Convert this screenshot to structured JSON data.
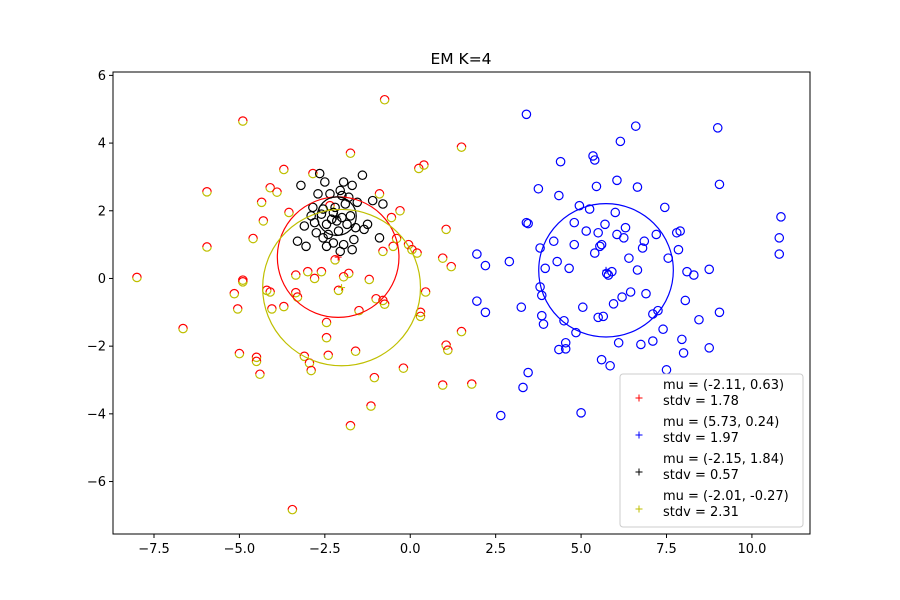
{
  "chart_data": {
    "type": "scatter",
    "title": "EM K=4",
    "xlabel": "",
    "ylabel": "",
    "xlim": [
      -8.7,
      11.7
    ],
    "ylim": [
      -7.55,
      6.1
    ],
    "xticks": [
      -7.5,
      -5.0,
      -2.5,
      0.0,
      2.5,
      5.0,
      7.5,
      10.0
    ],
    "xtick_labels": [
      "−7.5",
      "−5.0",
      "−2.5",
      "0.0",
      "2.5",
      "5.0",
      "7.5",
      "10.0"
    ],
    "yticks": [
      -6,
      -4,
      -2,
      0,
      2,
      4,
      6
    ],
    "ytick_labels": [
      "−6",
      "−4",
      "−2",
      "0",
      "2",
      "4",
      "6"
    ],
    "grid": false,
    "legend_position": "lower-right",
    "clusters": [
      {
        "label_line1": "mu = (-2.11, 0.63)",
        "label_line2": " stdv = 1.78",
        "mu": [
          -2.11,
          0.63
        ],
        "stdv": 1.78,
        "color": "#ff0000"
      },
      {
        "label_line1": "mu = (5.73, 0.24)",
        "label_line2": " stdv = 1.97",
        "mu": [
          5.73,
          0.24
        ],
        "stdv": 1.97,
        "color": "#0000ff"
      },
      {
        "label_line1": "mu = (-2.15, 1.84)",
        "label_line2": " stdv = 0.57",
        "mu": [
          -2.15,
          1.84
        ],
        "stdv": 0.57,
        "color": "#000000"
      },
      {
        "label_line1": "mu = (-2.01, -0.27)",
        "label_line2": " stdv = 2.31",
        "mu": [
          -2.01,
          -0.27
        ],
        "stdv": 2.31,
        "color": "#bfbf00"
      }
    ],
    "points_red_yellow": [
      [
        -8.0,
        0.03
      ],
      [
        -6.65,
        -1.48
      ],
      [
        -5.95,
        2.56
      ],
      [
        -5.95,
        0.93
      ],
      [
        -4.9,
        4.65
      ],
      [
        -5.15,
        -0.45
      ],
      [
        -5.05,
        -0.9
      ],
      [
        -5.0,
        -2.22
      ],
      [
        -4.9,
        -0.05
      ],
      [
        -4.9,
        -0.1
      ],
      [
        -4.6,
        1.18
      ],
      [
        -4.5,
        -2.33
      ],
      [
        -4.5,
        -2.45
      ],
      [
        -4.4,
        -2.83
      ],
      [
        -4.35,
        2.25
      ],
      [
        -4.3,
        1.7
      ],
      [
        -4.2,
        -0.35
      ],
      [
        -4.1,
        -0.4
      ],
      [
        -4.1,
        2.68
      ],
      [
        -4.05,
        -0.9
      ],
      [
        -3.9,
        2.55
      ],
      [
        -3.7,
        3.22
      ],
      [
        -3.7,
        -0.83
      ],
      [
        -3.55,
        1.95
      ],
      [
        -3.45,
        -6.83
      ],
      [
        -3.35,
        -0.42
      ],
      [
        -3.35,
        0.1
      ],
      [
        -3.3,
        -0.55
      ],
      [
        -3.1,
        -2.3
      ],
      [
        -3.0,
        0.2
      ],
      [
        -2.95,
        -2.5
      ],
      [
        -2.9,
        -2.72
      ],
      [
        -2.85,
        3.1
      ],
      [
        -2.8,
        0.0
      ],
      [
        -2.6,
        0.2
      ],
      [
        -2.45,
        -1.3
      ],
      [
        -2.45,
        -1.75
      ],
      [
        -2.4,
        -2.27
      ],
      [
        -2.35,
        2.15
      ],
      [
        -2.2,
        0.55
      ],
      [
        -2.1,
        -0.35
      ],
      [
        -1.95,
        0.05
      ],
      [
        -1.8,
        0.15
      ],
      [
        -1.75,
        3.7
      ],
      [
        -1.75,
        -4.35
      ],
      [
        -1.6,
        -2.15
      ],
      [
        -1.5,
        -0.95
      ],
      [
        -1.2,
        -0.03
      ],
      [
        -1.15,
        -3.77
      ],
      [
        -1.05,
        -2.93
      ],
      [
        -1.0,
        -0.6
      ],
      [
        -0.9,
        2.5
      ],
      [
        -0.8,
        -0.65
      ],
      [
        -0.8,
        0.8
      ],
      [
        -0.75,
        5.28
      ],
      [
        -0.75,
        -0.76
      ],
      [
        -0.55,
        1.8
      ],
      [
        -0.5,
        0.95
      ],
      [
        -0.4,
        1.18
      ],
      [
        -0.3,
        2.0
      ],
      [
        -0.2,
        -2.65
      ],
      [
        -0.05,
        1.0
      ],
      [
        0.05,
        0.85
      ],
      [
        0.25,
        3.25
      ],
      [
        0.3,
        -1.12
      ],
      [
        0.3,
        -1.0
      ],
      [
        0.45,
        -0.4
      ],
      [
        0.95,
        0.6
      ],
      [
        1.05,
        -1.97
      ],
      [
        1.1,
        -2.12
      ],
      [
        1.2,
        0.35
      ],
      [
        1.5,
        -1.57
      ],
      [
        0.95,
        -3.15
      ],
      [
        1.8,
        -3.12
      ],
      [
        1.05,
        1.45
      ],
      [
        0.2,
        0.75
      ],
      [
        0.4,
        3.35
      ],
      [
        1.5,
        3.88
      ]
    ],
    "points_black": [
      [
        -3.3,
        1.1
      ],
      [
        -3.2,
        2.75
      ],
      [
        -3.1,
        1.55
      ],
      [
        -3.05,
        0.95
      ],
      [
        -2.9,
        1.85
      ],
      [
        -2.85,
        2.1
      ],
      [
        -2.8,
        1.65
      ],
      [
        -2.75,
        1.35
      ],
      [
        -2.7,
        2.5
      ],
      [
        -2.65,
        3.1
      ],
      [
        -2.6,
        1.9
      ],
      [
        -2.55,
        2.05
      ],
      [
        -2.5,
        2.85
      ],
      [
        -2.45,
        0.95
      ],
      [
        -2.45,
        1.6
      ],
      [
        -2.4,
        1.3
      ],
      [
        -2.35,
        2.5
      ],
      [
        -2.3,
        1.75
      ],
      [
        -2.25,
        1.95
      ],
      [
        -2.2,
        2.1
      ],
      [
        -2.15,
        1.7
      ],
      [
        -2.1,
        1.4
      ],
      [
        -2.05,
        2.6
      ],
      [
        -2.0,
        2.45
      ],
      [
        -2.0,
        1.8
      ],
      [
        -1.95,
        2.85
      ],
      [
        -1.95,
        1.0
      ],
      [
        -1.9,
        2.2
      ],
      [
        -1.85,
        1.6
      ],
      [
        -1.8,
        2.4
      ],
      [
        -1.75,
        1.85
      ],
      [
        -1.7,
        2.75
      ],
      [
        -1.7,
        0.85
      ],
      [
        -1.65,
        1.15
      ],
      [
        -1.6,
        1.5
      ],
      [
        -1.55,
        2.25
      ],
      [
        -1.4,
        3.05
      ],
      [
        -1.35,
        1.45
      ],
      [
        -1.25,
        1.6
      ],
      [
        -1.1,
        2.3
      ],
      [
        -0.9,
        1.2
      ],
      [
        -0.8,
        2.2
      ],
      [
        -2.55,
        1.2
      ],
      [
        -2.25,
        1.05
      ],
      [
        -2.05,
        0.8
      ]
    ],
    "points_blue": [
      [
        1.95,
        0.72
      ],
      [
        1.95,
        -0.67
      ],
      [
        2.2,
        0.38
      ],
      [
        2.2,
        -1.0
      ],
      [
        2.65,
        -4.05
      ],
      [
        2.9,
        0.5
      ],
      [
        3.25,
        -0.85
      ],
      [
        3.3,
        -3.22
      ],
      [
        3.4,
        4.85
      ],
      [
        3.4,
        1.65
      ],
      [
        3.45,
        1.62
      ],
      [
        3.45,
        -2.78
      ],
      [
        3.75,
        2.65
      ],
      [
        3.8,
        0.9
      ],
      [
        3.8,
        -0.25
      ],
      [
        3.85,
        -1.1
      ],
      [
        3.85,
        -0.5
      ],
      [
        3.9,
        -1.35
      ],
      [
        3.95,
        0.3
      ],
      [
        4.2,
        1.1
      ],
      [
        4.3,
        0.5
      ],
      [
        4.35,
        -2.1
      ],
      [
        4.35,
        2.45
      ],
      [
        4.4,
        3.45
      ],
      [
        4.5,
        -1.25
      ],
      [
        4.55,
        -1.9
      ],
      [
        4.55,
        -2.08
      ],
      [
        4.65,
        0.3
      ],
      [
        4.8,
        1.0
      ],
      [
        4.8,
        1.65
      ],
      [
        4.85,
        -1.6
      ],
      [
        4.95,
        2.15
      ],
      [
        5.0,
        -3.97
      ],
      [
        5.05,
        -0.85
      ],
      [
        5.15,
        1.4
      ],
      [
        5.25,
        2.05
      ],
      [
        5.35,
        3.62
      ],
      [
        5.4,
        3.5
      ],
      [
        5.4,
        0.75
      ],
      [
        5.45,
        2.72
      ],
      [
        5.5,
        1.35
      ],
      [
        5.5,
        -1.15
      ],
      [
        5.55,
        0.95
      ],
      [
        5.6,
        -2.4
      ],
      [
        5.65,
        -1.12
      ],
      [
        5.7,
        1.6
      ],
      [
        5.75,
        0.15
      ],
      [
        5.8,
        0.1
      ],
      [
        5.85,
        -2.58
      ],
      [
        5.9,
        0.2
      ],
      [
        5.95,
        -0.75
      ],
      [
        6.0,
        1.95
      ],
      [
        6.05,
        2.9
      ],
      [
        6.05,
        1.3
      ],
      [
        6.1,
        -1.9
      ],
      [
        6.15,
        4.05
      ],
      [
        6.2,
        -0.55
      ],
      [
        6.25,
        1.2
      ],
      [
        6.3,
        1.5
      ],
      [
        6.4,
        0.6
      ],
      [
        6.6,
        4.5
      ],
      [
        6.65,
        2.7
      ],
      [
        6.65,
        0.25
      ],
      [
        6.75,
        -1.95
      ],
      [
        6.8,
        0.9
      ],
      [
        6.85,
        1.1
      ],
      [
        6.9,
        -0.45
      ],
      [
        7.1,
        -1.85
      ],
      [
        7.1,
        -1.05
      ],
      [
        7.2,
        1.3
      ],
      [
        7.25,
        -0.95
      ],
      [
        7.4,
        -1.5
      ],
      [
        7.5,
        -2.7
      ],
      [
        7.55,
        0.6
      ],
      [
        7.8,
        1.35
      ],
      [
        7.9,
        1.4
      ],
      [
        7.95,
        -1.8
      ],
      [
        8.0,
        -2.2
      ],
      [
        8.05,
        -0.65
      ],
      [
        8.1,
        0.2
      ],
      [
        8.3,
        0.1
      ],
      [
        8.45,
        -1.22
      ],
      [
        8.75,
        0.27
      ],
      [
        8.75,
        -2.05
      ],
      [
        9.0,
        4.45
      ],
      [
        9.05,
        -1.0
      ],
      [
        9.05,
        2.78
      ],
      [
        10.8,
        1.2
      ],
      [
        10.85,
        1.82
      ],
      [
        10.8,
        0.72
      ],
      [
        7.85,
        0.85
      ],
      [
        7.45,
        2.1
      ],
      [
        5.6,
        1.0
      ],
      [
        6.45,
        -0.4
      ]
    ]
  }
}
